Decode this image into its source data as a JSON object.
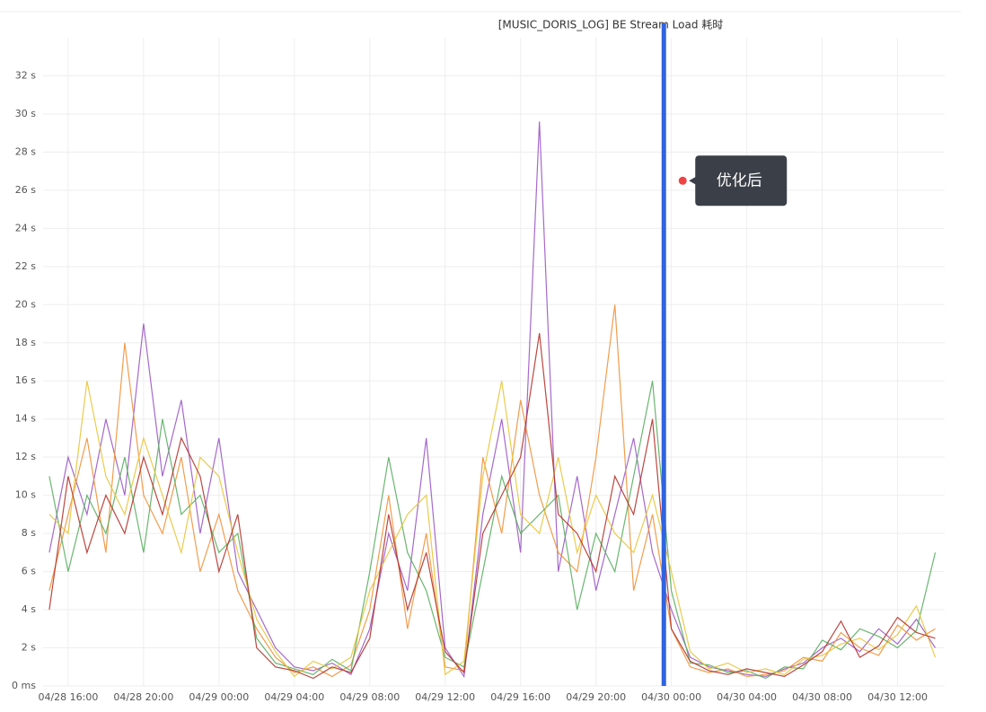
{
  "chart_data": {
    "type": "line",
    "title": "[MUSIC_DORIS_LOG] BE Stream Load 耗时",
    "x": [
      15,
      16,
      17,
      18,
      19,
      20,
      21,
      22,
      23,
      24,
      25,
      26,
      27,
      28,
      29,
      30,
      31,
      32,
      33,
      34,
      35,
      36,
      37,
      38,
      39,
      40,
      41,
      42,
      43,
      44,
      45,
      46,
      47,
      48,
      49,
      50,
      51,
      52,
      53,
      54,
      55,
      56,
      57,
      58,
      59,
      60,
      61,
      62
    ],
    "series": [
      {
        "color": "#9b59c6",
        "values": [
          7,
          12,
          9,
          14,
          10,
          19,
          11,
          15,
          8,
          13,
          6,
          4,
          2,
          1,
          0.8,
          1.2,
          0.6,
          3,
          8,
          5,
          13,
          2,
          0.5,
          9,
          14,
          7,
          29.6,
          6,
          11,
          5,
          9,
          13,
          7,
          4,
          1.5,
          1,
          0.8,
          0.6,
          0.5,
          0.9,
          1.2,
          2,
          2.5,
          1.8,
          3,
          2.2,
          3.5,
          2
        ]
      },
      {
        "color": "#f0923a",
        "values": [
          5,
          9,
          13,
          7,
          18,
          10,
          8,
          12,
          6,
          9,
          5,
          3,
          1.5,
          0.7,
          1,
          0.5,
          1.1,
          4,
          10,
          3,
          8,
          1,
          0.8,
          12,
          8,
          15,
          10,
          7,
          6,
          12,
          20,
          5,
          9,
          3,
          1,
          0.7,
          0.9,
          0.5,
          0.6,
          0.8,
          1.5,
          1.3,
          2.8,
          2,
          1.6,
          3.2,
          2.4,
          3
        ]
      },
      {
        "color": "#5aae61",
        "values": [
          11,
          6,
          10,
          8,
          12,
          7,
          14,
          9,
          10,
          7,
          8,
          2.5,
          1.2,
          0.9,
          0.6,
          1.4,
          0.8,
          6,
          12,
          7,
          5,
          1.5,
          1,
          6,
          11,
          8,
          9,
          10,
          4,
          8,
          6,
          11,
          16,
          5,
          1.2,
          1.1,
          0.7,
          0.8,
          0.4,
          1,
          0.9,
          2.4,
          1.9,
          3,
          2.6,
          2,
          2.9,
          7
        ]
      },
      {
        "color": "#e8c53a",
        "values": [
          9,
          8,
          16,
          11,
          9,
          13,
          10,
          7,
          12,
          11,
          7,
          3.5,
          1.8,
          0.5,
          1.3,
          0.9,
          1.5,
          5,
          7,
          9,
          10,
          0.6,
          1.3,
          11,
          16,
          9,
          8,
          12,
          7,
          10,
          8,
          7,
          10,
          6,
          1.8,
          0.9,
          1.2,
          0.7,
          0.9,
          0.6,
          1.4,
          1.6,
          2.2,
          2.5,
          1.9,
          2.7,
          4.2,
          1.5
        ]
      },
      {
        "color": "#b5332c",
        "values": [
          4,
          11,
          7,
          10,
          8,
          12,
          9,
          13,
          11,
          6,
          9,
          2,
          1,
          0.8,
          0.4,
          1,
          0.7,
          2.5,
          9,
          4,
          7,
          1.8,
          0.7,
          8,
          10,
          12,
          18.5,
          9,
          8,
          6,
          11,
          9,
          14,
          3,
          1.3,
          0.8,
          0.6,
          0.9,
          0.7,
          0.5,
          1.1,
          1.8,
          3.4,
          1.5,
          2.1,
          3.6,
          2.8,
          2.5
        ]
      }
    ],
    "xlim": [
      14.67,
      62.5
    ],
    "xticks": [
      {
        "value": 16,
        "label": "04/28 16:00"
      },
      {
        "value": 20,
        "label": "04/28 20:00"
      },
      {
        "value": 24,
        "label": "04/29 00:00"
      },
      {
        "value": 28,
        "label": "04/29 04:00"
      },
      {
        "value": 32,
        "label": "04/29 08:00"
      },
      {
        "value": 36,
        "label": "04/29 12:00"
      },
      {
        "value": 40,
        "label": "04/29 16:00"
      },
      {
        "value": 44,
        "label": "04/29 20:00"
      },
      {
        "value": 48,
        "label": "04/30 00:00"
      },
      {
        "value": 52,
        "label": "04/30 04:00"
      },
      {
        "value": 56,
        "label": "04/30 08:00"
      },
      {
        "value": 60,
        "label": "04/30 12:00"
      }
    ],
    "ylim": [
      0,
      34
    ],
    "yticks": [
      {
        "value": 0,
        "label": "0 ms"
      },
      {
        "value": 2,
        "label": "2 s"
      },
      {
        "value": 4,
        "label": "4 s"
      },
      {
        "value": 6,
        "label": "6 s"
      },
      {
        "value": 8,
        "label": "8 s"
      },
      {
        "value": 10,
        "label": "10 s"
      },
      {
        "value": 12,
        "label": "12 s"
      },
      {
        "value": 14,
        "label": "14 s"
      },
      {
        "value": 16,
        "label": "16 s"
      },
      {
        "value": 18,
        "label": "18 s"
      },
      {
        "value": 20,
        "label": "20 s"
      },
      {
        "value": 22,
        "label": "22 s"
      },
      {
        "value": 24,
        "label": "24 s"
      },
      {
        "value": 26,
        "label": "26 s"
      },
      {
        "value": 28,
        "label": "28 s"
      },
      {
        "value": 30,
        "label": "30 s"
      },
      {
        "value": 32,
        "label": "32 s"
      }
    ],
    "grid": true,
    "annotation": {
      "text": "优化后",
      "x": 47.6,
      "y": 26.5,
      "color": "#2f63e0"
    }
  }
}
